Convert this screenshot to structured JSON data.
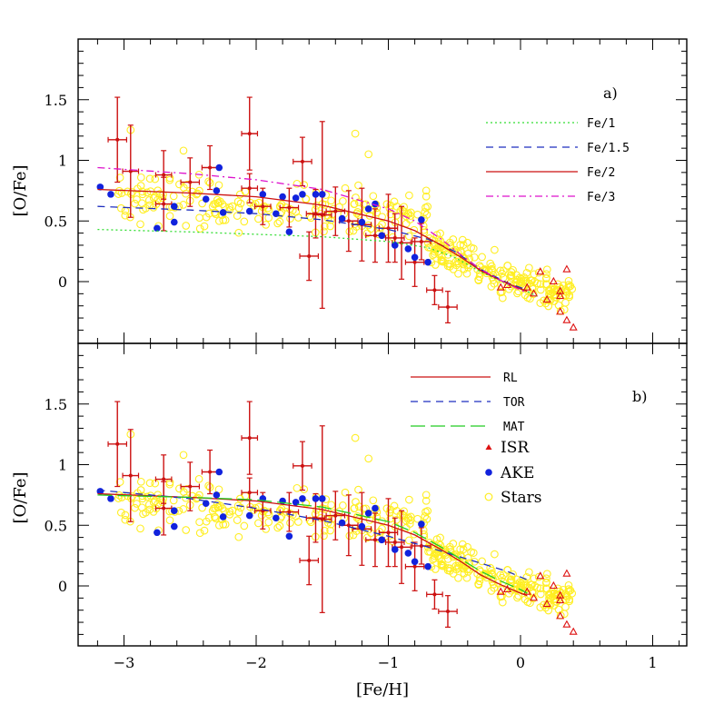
{
  "chart_data": [
    {
      "panel": "a)",
      "type": "scatter",
      "xlabel": "[Fe/H]",
      "ylabel": "[O/Fe]",
      "xlim": [
        -3.2,
        1.2
      ],
      "ylim": [
        -0.45,
        2.0
      ],
      "xticks": [
        -3,
        -2,
        -1,
        0,
        1
      ],
      "xtick_labels": [
        "−3",
        "−2",
        "−1",
        "0",
        "1"
      ],
      "yticks": [
        0,
        0.5,
        1,
        1.5
      ],
      "ytick_labels": [
        "0",
        "0.5",
        "1",
        "1.5"
      ],
      "legend_position": "top-right",
      "series": [
        {
          "name": "Fe/1",
          "style": "dotted",
          "color": "#33dd33",
          "x": [
            -3.2,
            -2.5,
            -2.0,
            -1.5,
            -1.0,
            -0.7,
            -0.5,
            -0.3,
            -0.1,
            0.05,
            0.12
          ],
          "y": [
            0.43,
            0.41,
            0.39,
            0.37,
            0.33,
            0.28,
            0.2,
            0.08,
            -0.02,
            -0.08,
            -0.12
          ]
        },
        {
          "name": "Fe/1.5",
          "style": "dashed",
          "color": "#1f2fbf",
          "x": [
            -3.2,
            -2.5,
            -2.0,
            -1.5,
            -1.0,
            -0.7,
            -0.5,
            -0.3,
            -0.1,
            0.05
          ],
          "y": [
            0.62,
            0.59,
            0.56,
            0.51,
            0.43,
            0.35,
            0.25,
            0.1,
            -0.01,
            -0.07
          ]
        },
        {
          "name": "Fe/2",
          "style": "solid",
          "color": "#cc1111",
          "x": [
            -3.2,
            -2.5,
            -2.0,
            -1.5,
            -1.0,
            -0.8,
            -0.6,
            -0.45,
            -0.3,
            -0.15,
            0.0,
            0.05
          ],
          "y": [
            0.76,
            0.73,
            0.7,
            0.63,
            0.5,
            0.42,
            0.3,
            0.2,
            0.09,
            0.01,
            -0.06,
            -0.08
          ]
        },
        {
          "name": "Fe/3",
          "style": "dashdot",
          "color": "#dd11cc",
          "x": [
            -3.2,
            -2.5,
            -2.0,
            -1.5,
            -1.0,
            -0.8,
            -0.6,
            -0.45,
            -0.3,
            -0.15,
            0.0,
            0.05
          ],
          "y": [
            0.94,
            0.89,
            0.84,
            0.76,
            0.6,
            0.5,
            0.35,
            0.22,
            0.1,
            0.01,
            -0.07,
            -0.09
          ]
        }
      ],
      "legend": [
        "Fe/1",
        "Fe/1.5",
        "Fe/2",
        "Fe/3"
      ]
    },
    {
      "panel": "b)",
      "type": "scatter",
      "xlabel": "[Fe/H]",
      "ylabel": "[O/Fe]",
      "xlim": [
        -3.2,
        1.2
      ],
      "ylim": [
        -0.45,
        2.0
      ],
      "xticks": [
        -3,
        -2,
        -1,
        0,
        1
      ],
      "xtick_labels": [
        "−3",
        "−2",
        "−1",
        "0",
        "1"
      ],
      "yticks": [
        0,
        0.5,
        1,
        1.5
      ],
      "ytick_labels": [
        "0",
        "0.5",
        "1",
        "1.5"
      ],
      "legend_position": "top-right",
      "series": [
        {
          "name": "RL",
          "style": "solid",
          "color": "#cc1111",
          "x": [
            -3.2,
            -2.5,
            -2.0,
            -1.5,
            -1.0,
            -0.8,
            -0.6,
            -0.45,
            -0.3,
            -0.15,
            0.0,
            0.05
          ],
          "y": [
            0.76,
            0.73,
            0.7,
            0.63,
            0.5,
            0.42,
            0.3,
            0.2,
            0.09,
            0.01,
            -0.06,
            -0.08
          ]
        },
        {
          "name": "TOR",
          "style": "dashed",
          "color": "#1f2fbf",
          "x": [
            -3.2,
            -2.5,
            -2.0,
            -1.5,
            -1.0,
            -0.7,
            -0.4,
            -0.1,
            0.05
          ],
          "y": [
            0.79,
            0.72,
            0.64,
            0.54,
            0.41,
            0.32,
            0.22,
            0.12,
            0.05
          ]
        },
        {
          "name": "MAT",
          "style": "longdash",
          "color": "#22cc22",
          "x": [
            -3.2,
            -2.5,
            -2.0,
            -1.5,
            -1.0,
            -0.8,
            -0.6,
            -0.45,
            -0.3,
            -0.15,
            0.0,
            0.05
          ],
          "y": [
            0.75,
            0.73,
            0.71,
            0.65,
            0.53,
            0.44,
            0.32,
            0.22,
            0.12,
            0.04,
            -0.03,
            -0.06
          ]
        }
      ],
      "legend": [
        "RL",
        "TOR",
        "MAT",
        "ISR",
        "AKE",
        "Stars"
      ]
    }
  ],
  "markers": {
    "isr": {
      "name": "ISR",
      "color": "#dd1111",
      "points": [
        [
          -0.15,
          -0.05
        ],
        [
          -0.1,
          -0.03
        ],
        [
          0.05,
          -0.05
        ],
        [
          0.1,
          -0.1
        ],
        [
          0.15,
          0.08
        ],
        [
          0.2,
          -0.15
        ],
        [
          0.25,
          0.0
        ],
        [
          0.3,
          -0.08
        ],
        [
          0.35,
          0.1
        ],
        [
          0.3,
          -0.25
        ],
        [
          0.35,
          -0.32
        ],
        [
          0.4,
          -0.38
        ],
        [
          0.3,
          -0.12
        ]
      ]
    },
    "ake": {
      "name": "AKE",
      "color": "#1122dd",
      "points": [
        [
          -3.18,
          0.78
        ],
        [
          -3.1,
          0.72
        ],
        [
          -2.75,
          0.44
        ],
        [
          -2.62,
          0.49
        ],
        [
          -2.62,
          0.62
        ],
        [
          -2.38,
          0.68
        ],
        [
          -2.28,
          0.94
        ],
        [
          -2.25,
          0.57
        ],
        [
          -2.05,
          0.58
        ],
        [
          -1.95,
          0.72
        ],
        [
          -1.8,
          0.7
        ],
        [
          -1.85,
          0.56
        ],
        [
          -1.7,
          0.69
        ],
        [
          -1.65,
          0.72
        ],
        [
          -1.55,
          0.72
        ],
        [
          -1.5,
          0.72
        ],
        [
          -1.35,
          0.52
        ],
        [
          -1.2,
          0.49
        ],
        [
          -1.1,
          0.64
        ],
        [
          -1.05,
          0.38
        ],
        [
          -0.95,
          0.3
        ],
        [
          -0.85,
          0.27
        ],
        [
          -0.8,
          0.2
        ],
        [
          -0.75,
          0.51
        ],
        [
          -0.7,
          0.16
        ],
        [
          -1.75,
          0.41
        ],
        [
          -2.3,
          0.75
        ],
        [
          -1.15,
          0.6
        ]
      ]
    },
    "stars_color": "#ffee22",
    "errorbars_color": "#cc1111"
  },
  "panel_labels": [
    "a)",
    "b)"
  ]
}
